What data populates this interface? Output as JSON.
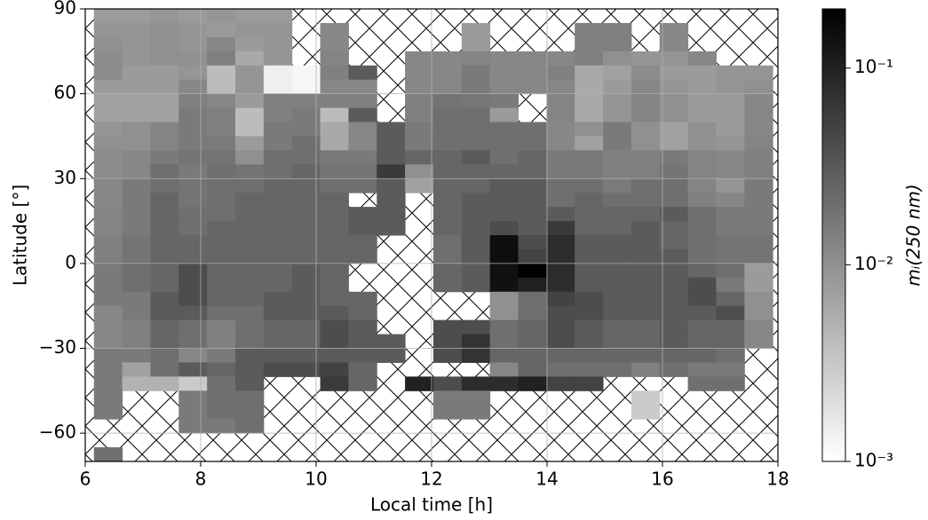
{
  "chart_data": {
    "type": "heatmap",
    "xlabel": "Local time [h]",
    "ylabel": "Latitude [°]",
    "colorbar_label": "mᵢ(250 nm)",
    "xlim": [
      6,
      18
    ],
    "ylim": [
      -70,
      90
    ],
    "xticks": [
      6,
      8,
      10,
      12,
      14,
      16,
      18
    ],
    "yticks": [
      {
        "value": -60,
        "label": "−60"
      },
      {
        "value": -30,
        "label": "−30"
      },
      0,
      30,
      60,
      90
    ],
    "grid": true,
    "colormap": "Greys",
    "colorscale": "log",
    "vlim": [
      0.001,
      0.2
    ],
    "cticks": [
      {
        "value": 0.001,
        "label": "10⁻³"
      },
      {
        "value": 0.01,
        "label": "10⁻²"
      },
      {
        "value": 0.1,
        "label": "10⁻¹"
      }
    ],
    "xbins": [
      6.15,
      6.64,
      7.13,
      7.62,
      8.11,
      8.6,
      9.09,
      9.58,
      10.07,
      10.56,
      11.05,
      11.54,
      12.03,
      12.52,
      13.01,
      13.5,
      13.99,
      14.48,
      14.97,
      15.46,
      15.95,
      16.44,
      16.93,
      17.42,
      17.91
    ],
    "ybins": [
      90,
      85,
      80,
      75,
      70,
      65,
      60,
      55,
      50,
      45,
      40,
      35,
      30,
      25,
      20,
      15,
      10,
      5,
      0,
      -5,
      -10,
      -15,
      -20,
      -25,
      -30,
      -35,
      -40,
      -45,
      -50,
      -55,
      -60,
      -65,
      -70
    ],
    "z": [
      [
        0.008,
        0.008,
        0.009,
        0.008,
        0.009,
        0.008,
        0.008,
        null,
        null,
        null,
        null,
        null,
        null,
        null,
        null,
        null,
        null,
        null,
        null,
        null,
        null,
        null,
        null,
        null
      ],
      [
        0.009,
        0.009,
        0.01,
        0.009,
        0.008,
        0.009,
        0.009,
        null,
        0.012,
        null,
        null,
        null,
        null,
        0.008,
        null,
        null,
        null,
        0.014,
        0.014,
        null,
        0.012,
        null,
        null,
        null
      ],
      [
        0.01,
        0.009,
        0.01,
        0.009,
        0.012,
        0.008,
        0.009,
        null,
        0.012,
        null,
        null,
        null,
        null,
        0.008,
        null,
        null,
        null,
        0.014,
        0.014,
        null,
        0.012,
        null,
        null,
        null
      ],
      [
        0.011,
        0.009,
        0.01,
        0.01,
        0.014,
        0.006,
        0.009,
        null,
        0.013,
        null,
        null,
        0.012,
        0.012,
        0.013,
        0.012,
        0.012,
        0.012,
        0.014,
        0.01,
        0.009,
        0.009,
        0.012,
        null,
        null
      ],
      [
        0.011,
        0.008,
        0.008,
        0.009,
        0.004,
        0.009,
        0.0014,
        0.0012,
        0.014,
        0.03,
        null,
        0.012,
        0.012,
        0.016,
        0.012,
        0.012,
        0.014,
        0.006,
        0.007,
        0.011,
        0.008,
        0.008,
        0.009,
        0.009
      ],
      [
        0.008,
        0.008,
        0.008,
        0.012,
        0.004,
        0.009,
        0.0014,
        0.0012,
        0.012,
        0.012,
        null,
        0.012,
        0.012,
        0.016,
        0.012,
        0.012,
        0.012,
        0.006,
        0.008,
        0.012,
        0.009,
        0.008,
        0.009,
        0.01
      ],
      [
        0.007,
        0.007,
        0.007,
        0.014,
        0.012,
        0.008,
        0.014,
        0.014,
        0.014,
        0.014,
        null,
        0.014,
        0.018,
        0.017,
        0.016,
        null,
        0.013,
        0.006,
        0.009,
        0.013,
        0.01,
        0.008,
        0.008,
        0.012
      ],
      [
        0.007,
        0.007,
        0.007,
        0.016,
        0.014,
        0.004,
        0.014,
        0.016,
        0.004,
        0.03,
        null,
        0.014,
        0.02,
        0.02,
        0.008,
        null,
        0.013,
        0.006,
        0.009,
        0.013,
        0.01,
        0.008,
        0.008,
        0.012
      ],
      [
        0.009,
        0.01,
        0.013,
        0.016,
        0.014,
        0.004,
        0.016,
        0.016,
        0.006,
        0.012,
        0.03,
        0.016,
        0.02,
        0.02,
        0.02,
        0.02,
        0.012,
        0.01,
        0.016,
        0.01,
        0.007,
        0.01,
        0.008,
        0.012
      ],
      [
        0.01,
        0.01,
        0.013,
        0.016,
        0.016,
        0.008,
        0.016,
        0.02,
        0.006,
        0.012,
        0.03,
        0.016,
        0.02,
        0.02,
        0.02,
        0.02,
        0.012,
        0.007,
        0.016,
        0.01,
        0.007,
        0.01,
        0.009,
        0.013
      ],
      [
        0.011,
        0.012,
        0.016,
        0.018,
        0.018,
        0.01,
        0.02,
        0.02,
        0.016,
        0.016,
        0.03,
        0.024,
        0.024,
        0.03,
        0.02,
        0.024,
        0.016,
        0.016,
        0.014,
        0.014,
        0.016,
        0.013,
        0.012,
        0.014
      ],
      [
        0.011,
        0.012,
        0.02,
        0.016,
        0.02,
        0.018,
        0.02,
        0.024,
        0.018,
        0.018,
        0.06,
        0.01,
        0.024,
        0.024,
        0.024,
        0.024,
        0.016,
        0.016,
        0.014,
        0.014,
        0.018,
        0.013,
        0.012,
        0.014
      ],
      [
        0.012,
        0.016,
        0.02,
        0.018,
        0.02,
        0.02,
        0.024,
        0.024,
        0.02,
        0.02,
        0.03,
        0.007,
        0.024,
        0.024,
        0.03,
        0.03,
        0.02,
        0.02,
        0.016,
        0.02,
        0.02,
        0.013,
        0.009,
        0.016
      ],
      [
        0.012,
        0.016,
        0.024,
        0.018,
        0.02,
        0.024,
        0.024,
        0.024,
        0.024,
        null,
        0.03,
        null,
        0.024,
        0.03,
        0.03,
        0.03,
        0.02,
        0.024,
        0.02,
        0.02,
        0.02,
        0.014,
        0.012,
        0.016
      ],
      [
        0.013,
        0.016,
        0.024,
        0.02,
        0.02,
        0.024,
        0.024,
        0.024,
        0.024,
        0.03,
        0.03,
        null,
        0.024,
        0.03,
        0.03,
        0.03,
        0.03,
        0.024,
        0.024,
        0.024,
        0.03,
        0.02,
        0.016,
        0.016
      ],
      [
        0.013,
        0.016,
        0.024,
        0.02,
        0.024,
        0.024,
        0.024,
        0.024,
        0.024,
        0.03,
        0.03,
        null,
        0.024,
        0.03,
        0.04,
        0.03,
        0.06,
        0.024,
        0.024,
        0.03,
        0.024,
        0.02,
        0.016,
        0.016
      ],
      [
        0.014,
        0.018,
        0.024,
        0.024,
        0.024,
        0.024,
        0.024,
        0.024,
        0.024,
        0.024,
        null,
        null,
        0.02,
        0.03,
        0.15,
        0.04,
        0.08,
        0.03,
        0.03,
        0.03,
        0.024,
        0.02,
        0.018,
        0.018
      ],
      [
        0.014,
        0.018,
        0.024,
        0.024,
        0.024,
        0.024,
        0.024,
        0.024,
        0.024,
        0.024,
        null,
        null,
        0.02,
        0.03,
        0.15,
        0.05,
        0.08,
        0.03,
        0.03,
        0.03,
        0.03,
        0.02,
        0.018,
        0.018
      ],
      [
        0.016,
        0.02,
        0.024,
        0.04,
        0.024,
        0.024,
        0.024,
        0.03,
        0.024,
        null,
        null,
        null,
        0.024,
        0.03,
        0.14,
        0.2,
        0.08,
        0.03,
        0.03,
        0.03,
        0.03,
        0.024,
        0.02,
        0.008
      ],
      [
        0.016,
        0.02,
        0.024,
        0.04,
        0.024,
        0.024,
        0.024,
        0.03,
        0.024,
        null,
        null,
        null,
        0.024,
        0.03,
        0.14,
        0.1,
        0.08,
        0.03,
        0.03,
        0.03,
        0.03,
        0.04,
        0.016,
        0.008
      ],
      [
        0.016,
        0.016,
        0.03,
        0.04,
        0.024,
        0.024,
        0.03,
        0.03,
        0.024,
        0.024,
        null,
        null,
        null,
        null,
        0.01,
        0.02,
        0.05,
        0.04,
        0.03,
        0.03,
        0.03,
        0.04,
        0.024,
        0.01
      ],
      [
        0.012,
        0.016,
        0.03,
        0.03,
        0.02,
        0.02,
        0.03,
        0.03,
        0.03,
        0.024,
        null,
        null,
        null,
        null,
        0.01,
        0.02,
        0.04,
        0.04,
        0.03,
        0.03,
        0.03,
        0.03,
        0.04,
        0.01
      ],
      [
        0.012,
        0.014,
        0.024,
        0.02,
        0.014,
        0.02,
        0.024,
        0.024,
        0.04,
        0.03,
        null,
        null,
        0.04,
        0.04,
        0.02,
        0.024,
        0.04,
        0.03,
        0.024,
        0.024,
        0.03,
        0.024,
        0.024,
        0.012
      ],
      [
        0.012,
        0.014,
        0.024,
        0.02,
        0.014,
        0.02,
        0.024,
        0.024,
        0.04,
        0.03,
        0.03,
        null,
        0.04,
        0.07,
        0.02,
        0.024,
        0.04,
        0.03,
        0.024,
        0.024,
        0.03,
        0.024,
        0.024,
        0.012
      ],
      [
        0.016,
        0.016,
        0.02,
        0.012,
        0.016,
        0.03,
        0.03,
        0.03,
        0.03,
        0.03,
        0.03,
        null,
        0.04,
        0.07,
        0.024,
        0.024,
        0.024,
        0.024,
        0.024,
        0.024,
        0.024,
        0.024,
        0.02,
        null
      ],
      [
        0.016,
        0.007,
        0.02,
        0.03,
        0.024,
        0.03,
        0.04,
        0.04,
        0.05,
        0.024,
        null,
        null,
        null,
        null,
        0.012,
        0.024,
        0.02,
        0.02,
        0.02,
        0.014,
        0.02,
        0.016,
        0.016,
        null
      ],
      [
        0.016,
        0.005,
        0.005,
        0.003,
        0.02,
        0.03,
        null,
        null,
        0.06,
        0.024,
        null,
        0.1,
        0.04,
        0.08,
        0.08,
        0.1,
        0.05,
        0.05,
        null,
        null,
        null,
        0.02,
        0.02,
        null
      ],
      [
        0.016,
        null,
        null,
        0.016,
        0.02,
        0.02,
        null,
        null,
        null,
        null,
        null,
        null,
        0.016,
        0.016,
        null,
        null,
        null,
        null,
        null,
        0.003,
        null,
        null,
        null,
        null
      ],
      [
        0.016,
        null,
        null,
        0.016,
        0.02,
        0.02,
        null,
        null,
        null,
        null,
        null,
        null,
        0.016,
        0.016,
        null,
        null,
        null,
        null,
        null,
        0.003,
        null,
        null,
        null,
        null
      ],
      [
        null,
        null,
        null,
        0.016,
        0.016,
        0.02,
        null,
        null,
        null,
        null,
        null,
        null,
        null,
        null,
        null,
        null,
        null,
        null,
        null,
        null,
        null,
        null,
        null,
        null
      ],
      [
        null,
        null,
        null,
        null,
        null,
        null,
        null,
        null,
        null,
        null,
        null,
        null,
        null,
        null,
        null,
        null,
        null,
        null,
        null,
        null,
        null,
        null,
        null,
        null
      ],
      [
        0.02,
        null,
        null,
        null,
        null,
        null,
        null,
        null,
        null,
        null,
        null,
        null,
        null,
        null,
        null,
        null,
        null,
        null,
        null,
        null,
        null,
        null,
        null,
        null
      ]
    ]
  }
}
